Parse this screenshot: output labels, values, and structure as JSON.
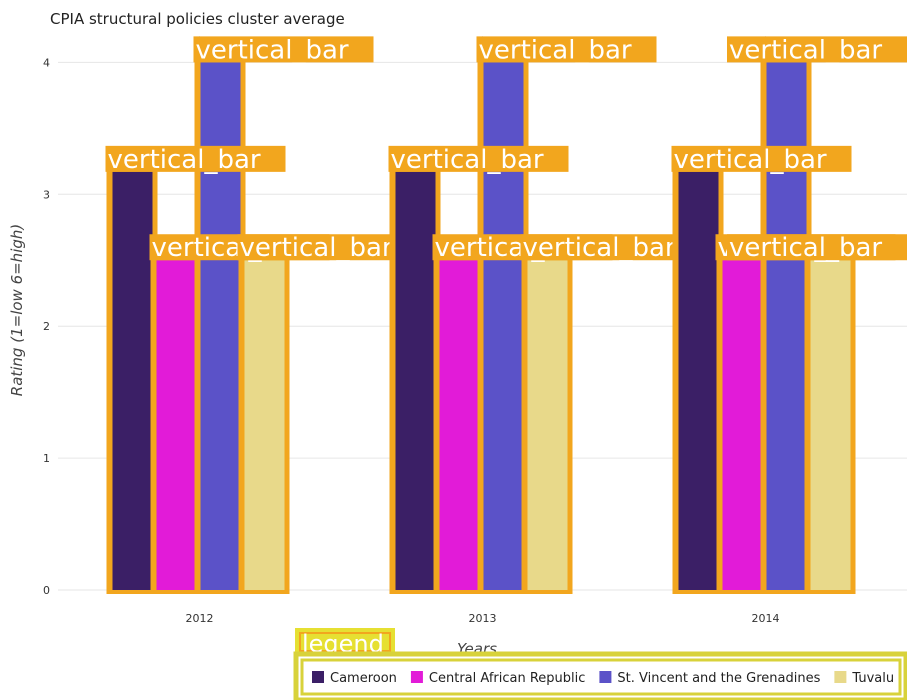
{
  "chart_data": {
    "type": "bar",
    "title": "CPIA structural policies cluster average",
    "xlabel": "Years",
    "ylabel": "Rating (1=low 6=high)",
    "categories": [
      "2012",
      "2013",
      "2014"
    ],
    "ylim": [
      0,
      4.2
    ],
    "yticks": [
      0,
      1,
      2,
      3,
      4
    ],
    "grid": true,
    "series": [
      {
        "name": "Cameroon",
        "color": "#3b1f66",
        "values": [
          3.17,
          3.17,
          3.17
        ]
      },
      {
        "name": "Central African Republic",
        "color": "#e21bd8",
        "values": [
          2.5,
          2.5,
          2.5
        ]
      },
      {
        "name": "St. Vincent and the Grenadines",
        "color": "#5b52c8",
        "values": [
          4.0,
          4.0,
          4.0
        ]
      },
      {
        "name": "Tuvalu",
        "color": "#e8d98a",
        "values": [
          2.5,
          2.5,
          2.5
        ]
      }
    ],
    "annotation_label": "vertical_bar",
    "legend_label": "legend",
    "legend_position": "bottom-right"
  }
}
